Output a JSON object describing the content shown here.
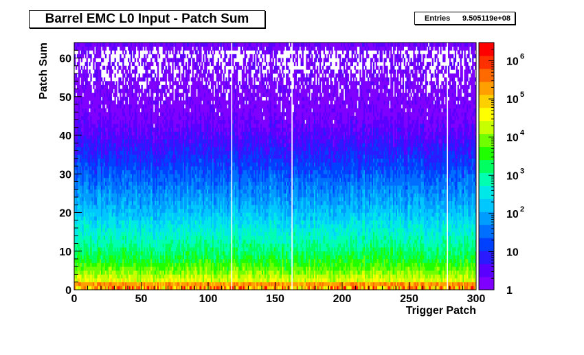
{
  "title": "Barrel EMC L0 Input - Patch Sum",
  "stats": {
    "label": "Entries",
    "value": "9.505119e+08"
  },
  "chart_data": {
    "type": "heatmap",
    "title": "Barrel EMC L0 Input - Patch Sum",
    "xlabel": "Trigger Patch",
    "ylabel": "Patch Sum",
    "xlim": [
      0,
      300
    ],
    "ylim": [
      0,
      64
    ],
    "zlim": [
      1,
      3000000
    ],
    "z_scale": "log",
    "x_ticks": [
      0,
      50,
      100,
      150,
      200,
      250,
      300
    ],
    "y_ticks": [
      0,
      10,
      20,
      30,
      40,
      50,
      60
    ],
    "z_ticks": [
      {
        "value": 1,
        "base": "1",
        "exp": ""
      },
      {
        "value": 10,
        "base": "10",
        "exp": ""
      },
      {
        "value": 100,
        "base": "10",
        "exp": "2"
      },
      {
        "value": 1000,
        "base": "10",
        "exp": "3"
      },
      {
        "value": 10000,
        "base": "10",
        "exp": "4"
      },
      {
        "value": 100000,
        "base": "10",
        "exp": "5"
      },
      {
        "value": 1000000,
        "base": "10",
        "exp": "6"
      }
    ],
    "x_bins": 300,
    "y_bins": 64,
    "empty_columns": [
      117,
      162,
      278
    ],
    "row_profile": [
      {
        "y": 0,
        "counts": 3000
      },
      {
        "y": 1,
        "counts": 1500000
      },
      {
        "y": 2,
        "counts": 30000
      },
      {
        "y": 3,
        "counts": 20000
      },
      {
        "y": 5,
        "counts": 8000
      },
      {
        "y": 8,
        "counts": 2500
      },
      {
        "y": 12,
        "counts": 900
      },
      {
        "y": 17,
        "counts": 300
      },
      {
        "y": 22,
        "counts": 100
      },
      {
        "y": 27,
        "counts": 40
      },
      {
        "y": 32,
        "counts": 15
      },
      {
        "y": 37,
        "counts": 6
      },
      {
        "y": 42,
        "counts": 2.5
      },
      {
        "y": 48,
        "counts": 1.2
      },
      {
        "y": 55,
        "counts": 0.6
      },
      {
        "y": 62,
        "counts": 0.35
      },
      {
        "y": 63,
        "counts": 2
      }
    ],
    "grid": false,
    "palette": "rainbow"
  }
}
